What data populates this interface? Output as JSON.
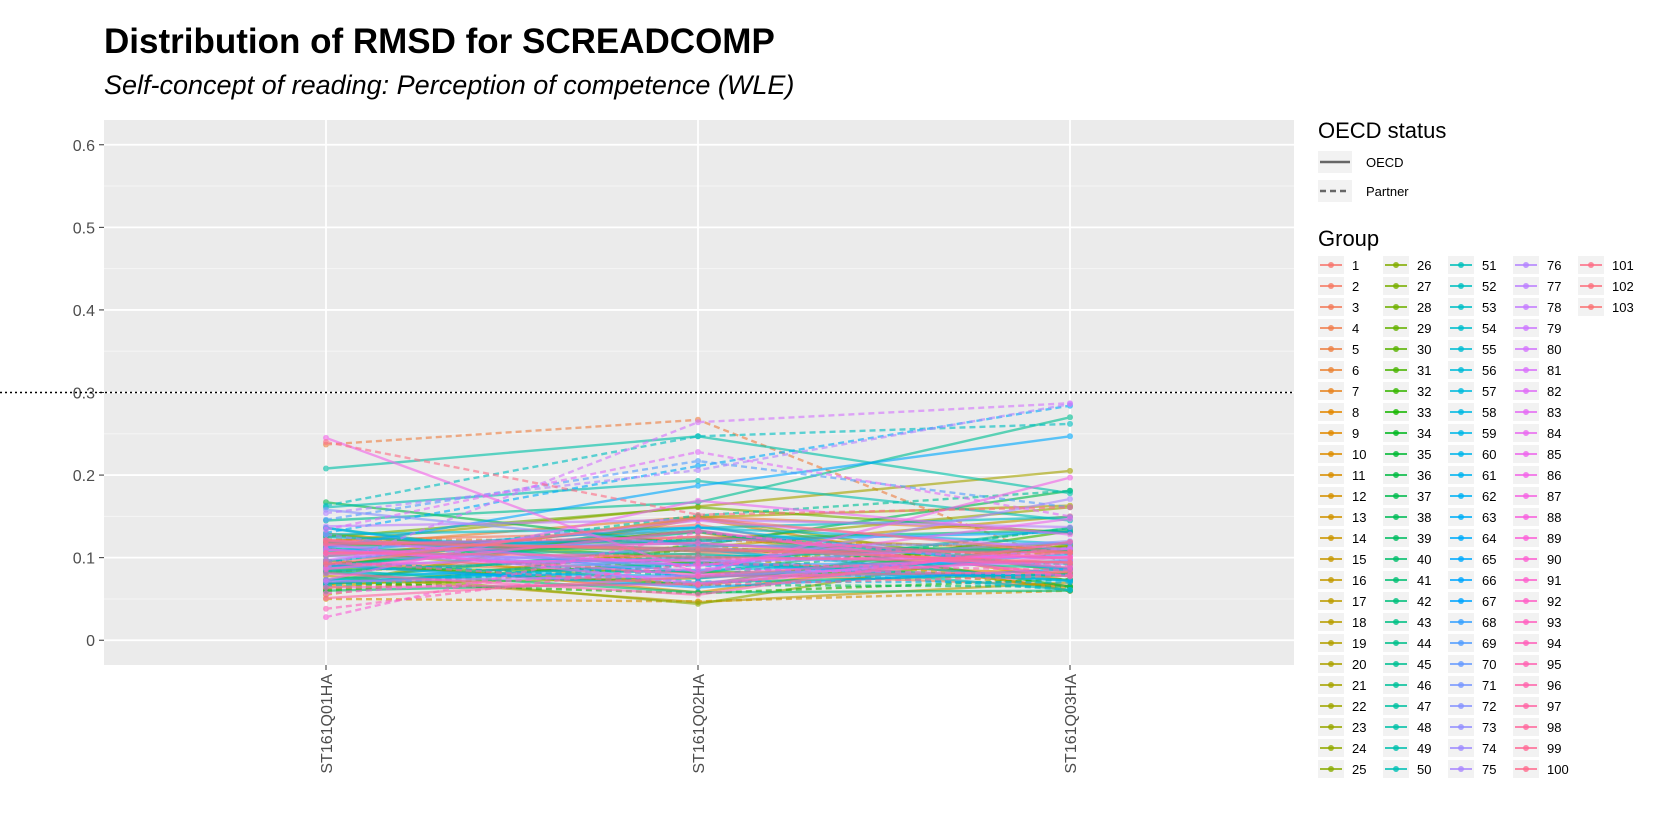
{
  "chart_data": {
    "type": "line",
    "title": "Distribution of RMSD for SCREADCOMP",
    "subtitle": "Self-concept of reading: Perception of competence (WLE)",
    "xlabel": "",
    "ylabel": "",
    "categories": [
      "ST161Q01HA",
      "ST161Q02HA",
      "ST161Q03HA"
    ],
    "ylim": [
      -0.03,
      0.63
    ],
    "y_ticks": [
      "0",
      "0.1",
      "0.2",
      "0.3",
      "0.4",
      "0.5",
      "0.6"
    ],
    "reference_line": {
      "y": 0.3,
      "style": "dotted"
    },
    "grid": true,
    "legend_placement": "right",
    "legend_oecd": {
      "title": "OECD status",
      "entries": [
        {
          "label": "OECD",
          "dash": "solid"
        },
        {
          "label": "Partner",
          "dash": "dashed"
        }
      ]
    },
    "legend_group": {
      "title": "Group",
      "labels": [
        "1",
        "2",
        "3",
        "4",
        "5",
        "6",
        "7",
        "8",
        "9",
        "10",
        "11",
        "12",
        "13",
        "14",
        "15",
        "16",
        "17",
        "18",
        "19",
        "20",
        "21",
        "22",
        "23",
        "24",
        "25",
        "26",
        "27",
        "28",
        "29",
        "30",
        "31",
        "32",
        "33",
        "34",
        "35",
        "36",
        "37",
        "38",
        "39",
        "40",
        "41",
        "42",
        "43",
        "44",
        "45",
        "46",
        "47",
        "48",
        "49",
        "50",
        "51",
        "52",
        "53",
        "54",
        "55",
        "56",
        "57",
        "58",
        "59",
        "60",
        "61",
        "62",
        "63",
        "64",
        "65",
        "66",
        "67",
        "68",
        "69",
        "70",
        "71",
        "72",
        "73",
        "74",
        "75",
        "76",
        "77",
        "78",
        "79",
        "80",
        "81",
        "82",
        "83",
        "84",
        "85",
        "86",
        "87",
        "88",
        "89",
        "90",
        "91",
        "92",
        "93",
        "94",
        "95",
        "96",
        "97",
        "98",
        "99",
        "100",
        "101",
        "102",
        "103"
      ]
    },
    "series": [
      {
        "values": [
          0.102,
          0.14,
          0.06
        ],
        "status": "OECD"
      },
      {
        "values": [
          0.121,
          0.131,
          0.079
        ],
        "status": "OECD"
      },
      {
        "values": [
          0.083,
          0.105,
          0.111
        ],
        "status": "OECD"
      },
      {
        "values": [
          0.094,
          0.082,
          0.066
        ],
        "status": "OECD"
      },
      {
        "values": [
          0.237,
          0.267,
          0.091
        ],
        "status": "Partner"
      },
      {
        "values": [
          0.114,
          0.15,
          0.131
        ],
        "status": "OECD"
      },
      {
        "values": [
          0.122,
          0.121,
          0.112
        ],
        "status": "Partner"
      },
      {
        "values": [
          0.129,
          0.093,
          0.081
        ],
        "status": "OECD"
      },
      {
        "values": [
          0.065,
          0.147,
          0.072
        ],
        "status": "OECD"
      },
      {
        "values": [
          0.097,
          0.058,
          0.119
        ],
        "status": "OECD"
      },
      {
        "values": [
          0.119,
          0.111,
          0.106
        ],
        "status": "OECD"
      },
      {
        "values": [
          0.05,
          0.047,
          0.06
        ],
        "status": "Partner"
      },
      {
        "values": [
          0.106,
          0.125,
          0.11
        ],
        "status": "OECD"
      },
      {
        "values": [
          0.055,
          0.117,
          0.063
        ],
        "status": "Partner"
      },
      {
        "values": [
          0.111,
          0.066,
          0.114
        ],
        "status": "OECD"
      },
      {
        "values": [
          0.063,
          0.112,
          0.15
        ],
        "status": "OECD"
      },
      {
        "values": [
          0.078,
          0.046,
          0.07
        ],
        "status": "OECD"
      },
      {
        "values": [
          0.102,
          0.131,
          0.06
        ],
        "status": "OECD"
      },
      {
        "values": [
          0.06,
          0.101,
          0.105
        ],
        "status": "Partner"
      },
      {
        "values": [
          0.089,
          0.149,
          0.163
        ],
        "status": "OECD"
      },
      {
        "values": [
          0.119,
          0.162,
          0.205
        ],
        "status": "OECD"
      },
      {
        "values": [
          0.083,
          0.102,
          0.065
        ],
        "status": "Partner"
      },
      {
        "values": [
          0.114,
          0.12,
          0.161
        ],
        "status": "OECD"
      },
      {
        "values": [
          0.067,
          0.149,
          0.082
        ],
        "status": "OECD"
      },
      {
        "values": [
          0.083,
          0.044,
          0.116
        ],
        "status": "OECD"
      },
      {
        "values": [
          0.059,
          0.093,
          0.111
        ],
        "status": "Partner"
      },
      {
        "values": [
          0.069,
          0.075,
          0.114
        ],
        "status": "OECD"
      },
      {
        "values": [
          0.125,
          0.161,
          0.13
        ],
        "status": "OECD"
      },
      {
        "values": [
          0.061,
          0.111,
          0.092
        ],
        "status": "Partner"
      },
      {
        "values": [
          0.127,
          0.099,
          0.117
        ],
        "status": "OECD"
      },
      {
        "values": [
          0.087,
          0.083,
          0.078
        ],
        "status": "OECD"
      },
      {
        "values": [
          0.092,
          0.067,
          0.132
        ],
        "status": "OECD"
      },
      {
        "values": [
          0.07,
          0.057,
          0.074
        ],
        "status": "Partner"
      },
      {
        "values": [
          0.091,
          0.133,
          0.065
        ],
        "status": "OECD"
      },
      {
        "values": [
          0.117,
          0.108,
          0.108
        ],
        "status": "OECD"
      },
      {
        "values": [
          0.069,
          0.095,
          0.073
        ],
        "status": "OECD"
      },
      {
        "values": [
          0.167,
          0.115,
          0.181
        ],
        "status": "OECD"
      },
      {
        "values": [
          0.073,
          0.115,
          0.109
        ],
        "status": "OECD"
      },
      {
        "values": [
          0.097,
          0.067,
          0.065
        ],
        "status": "Partner"
      },
      {
        "values": [
          0.06,
          0.07,
          0.08
        ],
        "status": "OECD"
      },
      {
        "values": [
          0.085,
          0.058,
          0.06
        ],
        "status": "OECD"
      },
      {
        "values": [
          0.091,
          0.123,
          0.133
        ],
        "status": "OECD"
      },
      {
        "values": [
          0.111,
          0.076,
          0.136
        ],
        "status": "Partner"
      },
      {
        "values": [
          0.136,
          0.081,
          0.136
        ],
        "status": "OECD"
      },
      {
        "values": [
          0.145,
          0.167,
          0.27
        ],
        "status": "OECD"
      },
      {
        "values": [
          0.095,
          0.151,
          0.181
        ],
        "status": "Partner"
      },
      {
        "values": [
          0.111,
          0.104,
          0.087
        ],
        "status": "OECD"
      },
      {
        "values": [
          0.208,
          0.247,
          0.178
        ],
        "status": "OECD"
      },
      {
        "values": [
          0.089,
          0.131,
          0.087
        ],
        "status": "OECD"
      },
      {
        "values": [
          0.161,
          0.193,
          0.145
        ],
        "status": "OECD"
      },
      {
        "values": [
          0.073,
          0.099,
          0.061
        ],
        "status": "OECD"
      },
      {
        "values": [
          0.163,
          0.247,
          0.262
        ],
        "status": "Partner"
      },
      {
        "values": [
          0.128,
          0.136,
          0.149
        ],
        "status": "OECD"
      },
      {
        "values": [
          0.084,
          0.101,
          0.111
        ],
        "status": "OECD"
      },
      {
        "values": [
          0.066,
          0.091,
          0.061
        ],
        "status": "Partner"
      },
      {
        "values": [
          0.096,
          0.136,
          0.117
        ],
        "status": "OECD"
      },
      {
        "values": [
          0.072,
          0.085,
          0.096
        ],
        "status": "OECD"
      },
      {
        "values": [
          0.125,
          0.11,
          0.072
        ],
        "status": "OECD"
      },
      {
        "values": [
          0.095,
          0.071,
          0.07
        ],
        "status": "Partner"
      },
      {
        "values": [
          0.069,
          0.093,
          0.072
        ],
        "status": "OECD"
      },
      {
        "values": [
          0.081,
          0.078,
          0.079
        ],
        "status": "OECD"
      },
      {
        "values": [
          0.108,
          0.137,
          0.085
        ],
        "status": "OECD"
      },
      {
        "values": [
          0.136,
          0.075,
          0.104
        ],
        "status": "OECD"
      },
      {
        "values": [
          0.13,
          0.211,
          0.284
        ],
        "status": "Partner"
      },
      {
        "values": [
          0.112,
          0.187,
          0.247
        ],
        "status": "OECD"
      },
      {
        "values": [
          0.118,
          0.12,
          0.131
        ],
        "status": "OECD"
      },
      {
        "values": [
          0.091,
          0.064,
          0.086
        ],
        "status": "OECD"
      },
      {
        "values": [
          0.11,
          0.091,
          0.095
        ],
        "status": "OECD"
      },
      {
        "values": [
          0.146,
          0.217,
          0.161
        ],
        "status": "Partner"
      },
      {
        "values": [
          0.113,
          0.117,
          0.098
        ],
        "status": "OECD"
      },
      {
        "values": [
          0.087,
          0.112,
          0.092
        ],
        "status": "OECD"
      },
      {
        "values": [
          0.158,
          0.114,
          0.117
        ],
        "status": "OECD"
      },
      {
        "values": [
          0.102,
          0.091,
          0.12
        ],
        "status": "OECD"
      },
      {
        "values": [
          0.128,
          0.066,
          0.112
        ],
        "status": "Partner"
      },
      {
        "values": [
          0.11,
          0.084,
          0.171
        ],
        "status": "OECD"
      },
      {
        "values": [
          0.154,
          0.206,
          0.286
        ],
        "status": "Partner"
      },
      {
        "values": [
          0.138,
          0.146,
          0.137
        ],
        "status": "OECD"
      },
      {
        "values": [
          0.105,
          0.096,
          0.101
        ],
        "status": "OECD"
      },
      {
        "values": [
          0.071,
          0.078,
          0.096
        ],
        "status": "OECD"
      },
      {
        "values": [
          0.088,
          0.264,
          0.287
        ],
        "status": "Partner"
      },
      {
        "values": [
          0.097,
          0.145,
          0.11
        ],
        "status": "OECD"
      },
      {
        "values": [
          0.134,
          0.228,
          0.15
        ],
        "status": "Partner"
      },
      {
        "values": [
          0.116,
          0.069,
          0.111
        ],
        "status": "OECD"
      },
      {
        "values": [
          0.073,
          0.169,
          0.128
        ],
        "status": "OECD"
      },
      {
        "values": [
          0.121,
          0.09,
          0.147
        ],
        "status": "OECD"
      },
      {
        "values": [
          0.245,
          0.081,
          0.197
        ],
        "status": "OECD"
      },
      {
        "values": [
          0.057,
          0.087,
          0.079
        ],
        "status": "Partner"
      },
      {
        "values": [
          0.092,
          0.098,
          0.101
        ],
        "status": "OECD"
      },
      {
        "values": [
          0.028,
          0.131,
          0.089
        ],
        "status": "Partner"
      },
      {
        "values": [
          0.11,
          0.079,
          0.106
        ],
        "status": "OECD"
      },
      {
        "values": [
          0.086,
          0.133,
          0.077
        ],
        "status": "OECD"
      },
      {
        "values": [
          0.064,
          0.068,
          0.101
        ],
        "status": "OECD"
      },
      {
        "values": [
          0.105,
          0.118,
          0.088
        ],
        "status": "OECD"
      },
      {
        "values": [
          0.038,
          0.093,
          0.085
        ],
        "status": "Partner"
      },
      {
        "values": [
          0.081,
          0.055,
          0.119
        ],
        "status": "OECD"
      },
      {
        "values": [
          0.116,
          0.125,
          0.099
        ],
        "status": "OECD"
      },
      {
        "values": [
          0.051,
          0.077,
          0.083
        ],
        "status": "OECD"
      },
      {
        "values": [
          0.106,
          0.101,
          0.094
        ],
        "status": "OECD"
      },
      {
        "values": [
          0.095,
          0.067,
          0.078
        ],
        "status": "Partner"
      },
      {
        "values": [
          0.121,
          0.108,
          0.107
        ],
        "status": "OECD"
      },
      {
        "values": [
          0.24,
          0.152,
          0.161
        ],
        "status": "Partner"
      },
      {
        "values": [
          0.118,
          0.111,
          0.094
        ],
        "status": "OECD"
      },
      {
        "values": [
          0.092,
          0.148,
          0.106
        ],
        "status": "OECD"
      }
    ]
  }
}
